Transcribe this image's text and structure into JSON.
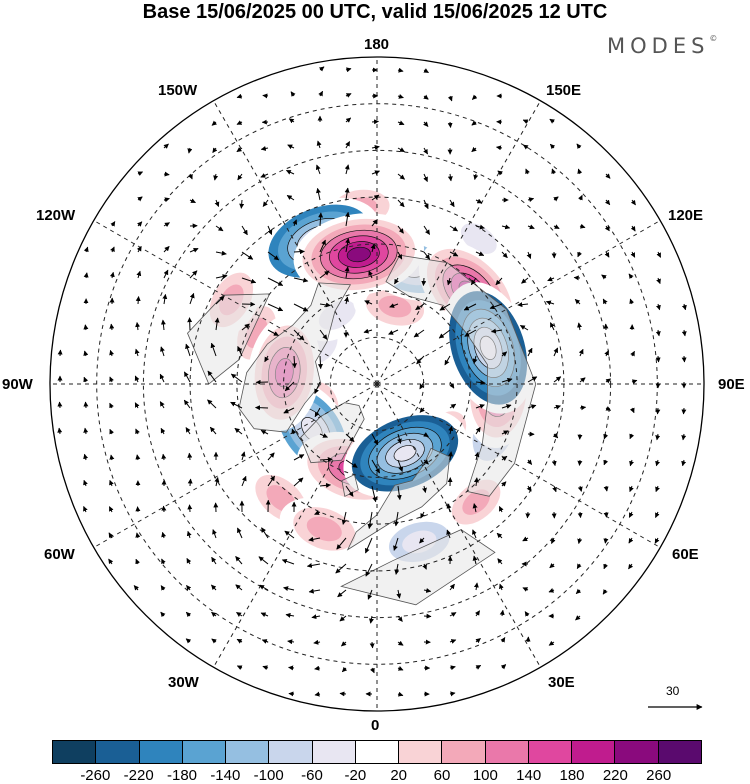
{
  "title": "Base 15/06/2025 00 UTC, valid 15/06/2025 12 UTC",
  "logo": {
    "text": "MODES",
    "mark": "©"
  },
  "longitude_labels": {
    "deg180": "180",
    "w150": "150W",
    "e150": "150E",
    "w120": "120W",
    "e120": "120E",
    "w90": "90W",
    "e90": "90E",
    "w60": "60W",
    "e60": "60E",
    "w30": "30W",
    "e30": "30E",
    "deg0": "0"
  },
  "reference_vector": {
    "value": "30"
  },
  "colorbar": {
    "ticks": [
      "-260",
      "-220",
      "-180",
      "-140",
      "-100",
      "-60",
      "-20",
      "20",
      "60",
      "100",
      "140",
      "180",
      "220",
      "260"
    ],
    "colors": [
      "#0f3f60",
      "#1a5f95",
      "#2f84bd",
      "#5aa3d2",
      "#95bfe1",
      "#c9d6ec",
      "#e8e6f2",
      "#ffffff",
      "#f9d3d6",
      "#f3a9b9",
      "#ea78aa",
      "#e0479f",
      "#c01c8e",
      "#8a0a7d",
      "#5a0a6e"
    ]
  },
  "anomalies": [
    {
      "lon": -158,
      "colat": 33,
      "value": -210
    },
    {
      "lon": -172,
      "colat": 28,
      "value": 230
    },
    {
      "lon": 164,
      "colat": 26,
      "value": -120
    },
    {
      "lon": 135,
      "colat": 28,
      "value": 190
    },
    {
      "lon": 108,
      "colat": 25,
      "value": -250
    },
    {
      "lon": 86,
      "colat": 26,
      "value": 150
    },
    {
      "lon": -97,
      "colat": 20,
      "value": 170
    },
    {
      "lon": -113,
      "colat": 28,
      "value": 60
    },
    {
      "lon": 167,
      "colat": 17,
      "value": 70
    },
    {
      "lon": -55,
      "colat": 17,
      "value": -150
    },
    {
      "lon": -16,
      "colat": 19,
      "value": 160
    },
    {
      "lon": 22,
      "colat": 16,
      "value": -220
    },
    {
      "lon": 50,
      "colat": 18,
      "value": 80
    },
    {
      "lon": 6,
      "colat": 17,
      "value": 70
    },
    {
      "lon": 68,
      "colat": 27,
      "value": -80
    },
    {
      "lon": -40,
      "colat": 32,
      "value": 70
    },
    {
      "lon": -20,
      "colat": 33,
      "value": 90
    },
    {
      "lon": -150,
      "colat": 17,
      "value": -40
    },
    {
      "lon": -125,
      "colat": 14,
      "value": -30
    },
    {
      "lon": 40,
      "colat": 33,
      "value": 60
    },
    {
      "lon": -175,
      "colat": 38,
      "value": 60
    },
    {
      "lon": -120,
      "colat": 36,
      "value": 70
    },
    {
      "lon": -70,
      "colat": 12,
      "value": 50
    },
    {
      "lon": 15,
      "colat": 35,
      "value": -80
    },
    {
      "lon": 145,
      "colat": 38,
      "value": -40
    }
  ]
}
